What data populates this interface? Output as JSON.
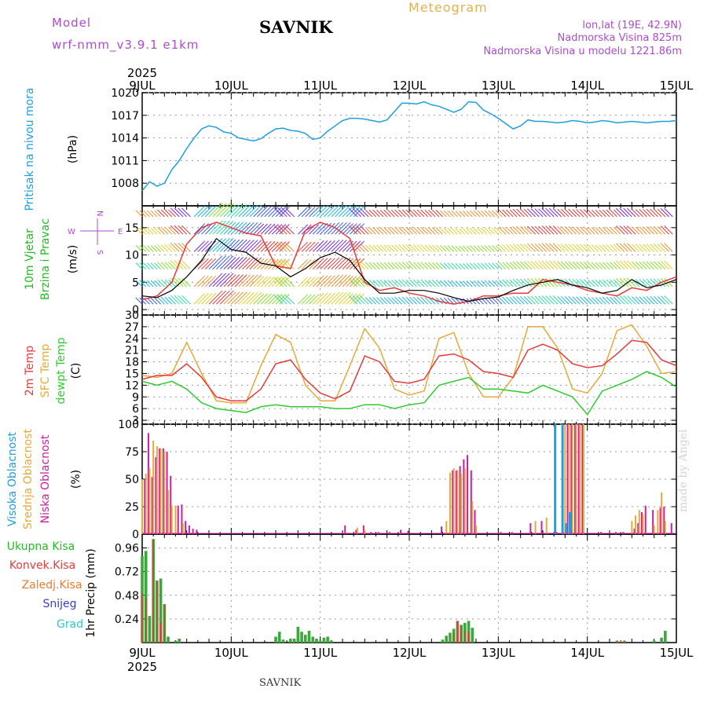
{
  "header": {
    "model_label": "Model",
    "model_name": "wrf-nmm_v3.9.1 e1km",
    "station": "SAVNIK",
    "meteogram": "Meteogram",
    "lonlat": "lon,lat (19E, 42.9N)",
    "altitude": "Nadmorska Visina 825m",
    "model_altitude": "Nadmorska Visina u modelu 1221.86m"
  },
  "footer": {
    "station": "SAVNIK",
    "credit": "made by Angel"
  },
  "axis": {
    "year": "2025",
    "days": [
      "9JUL",
      "10JUL",
      "11JUL",
      "12JUL",
      "13JUL",
      "14JUL",
      "15JUL"
    ]
  },
  "colors": {
    "pressure": "#1e9fe0",
    "temp": "#e83a3a",
    "sfc": "#e8a83a",
    "dew": "#2ecc2e",
    "high_cloud": "#1e9fe0",
    "mid_cloud": "#e8a83a",
    "low_cloud": "#cc1e9f",
    "precip": "#3aa83a",
    "convective": "#e83a3a",
    "wind_black": "#000000",
    "gust_red": "#e83a3a"
  },
  "panels": {
    "pressure": {
      "label1": "Pritisak na nivou mora",
      "unit": "(hPa)"
    },
    "wind": {
      "label1": "10m Vjetar",
      "label2": "Brzina i Pravac",
      "unit": "(m/s)",
      "compass": {
        "n": "N",
        "s": "S",
        "e": "E",
        "w": "W"
      }
    },
    "temp": {
      "label1": "2m Temp",
      "label2": "SFC Temp",
      "label3": "dewpt Temp",
      "unit": "(C)"
    },
    "cloud": {
      "label1": "Visoka Oblacnost",
      "label2": "Srednja Oblacnost",
      "label3": "Niska Oblacnost",
      "unit": "(%)"
    },
    "precip": {
      "labels": [
        "Ukupna Kisa",
        "Konvek.Kisa",
        "Zaledj.Kisa",
        "Snijeg",
        "Grad"
      ],
      "unit": "1hr Precip (mm)"
    }
  },
  "chart_data": [
    {
      "type": "line",
      "title": "Pritisak na nivou mora",
      "ylabel": "(hPa)",
      "ylim": [
        1005,
        1020
      ],
      "yticks": [
        1008,
        1011,
        1014,
        1017,
        1020
      ],
      "x_hours": [
        0,
        2,
        4,
        6,
        8,
        10,
        12,
        14,
        16,
        18,
        20,
        22,
        24,
        26,
        28,
        30,
        32,
        34,
        36,
        38,
        40,
        42,
        44,
        46,
        48,
        50,
        52,
        54,
        56,
        58,
        60,
        62,
        64,
        66,
        68,
        70,
        72,
        74,
        76,
        78,
        80,
        82,
        84,
        86,
        88,
        90,
        92,
        94,
        96,
        98,
        100,
        102,
        104,
        106,
        108,
        110,
        112,
        114,
        116,
        118,
        120,
        122,
        124,
        126,
        128,
        130,
        132,
        134,
        136,
        138,
        140,
        142,
        144
      ],
      "series": [
        {
          "name": "Pritisak",
          "values": [
            1007.0,
            1008.2,
            1007.6,
            1008.0,
            1009.8,
            1011.0,
            1012.6,
            1014.0,
            1015.2,
            1015.6,
            1015.4,
            1014.8,
            1014.6,
            1014.0,
            1013.8,
            1013.6,
            1013.9,
            1014.6,
            1015.2,
            1015.3,
            1015.0,
            1014.9,
            1014.6,
            1013.8,
            1014.0,
            1014.9,
            1015.6,
            1016.3,
            1016.6,
            1016.6,
            1016.5,
            1016.3,
            1016.1,
            1016.4,
            1017.5,
            1018.6,
            1018.6,
            1018.5,
            1018.8,
            1018.4,
            1018.2,
            1017.8,
            1017.4,
            1017.8,
            1018.8,
            1018.7,
            1017.7,
            1017.2,
            1016.6,
            1015.9,
            1015.2,
            1015.6,
            1016.4,
            1016.2,
            1016.2,
            1016.1,
            1016.0,
            1016.1,
            1016.3,
            1016.2,
            1016.0,
            1016.1,
            1016.3,
            1016.2,
            1016.0,
            1016.1,
            1016.2,
            1016.1,
            1016.0,
            1016.1,
            1016.2,
            1016.2,
            1016.3
          ]
        }
      ]
    },
    {
      "type": "line",
      "title": "10m Vjetar Brzina i Pravac",
      "ylabel": "(m/s)",
      "ylim": [
        -1,
        19
      ],
      "yticks": [
        0,
        5,
        10,
        15
      ],
      "x_hours": [
        0,
        4,
        8,
        12,
        16,
        20,
        24,
        28,
        32,
        36,
        40,
        44,
        48,
        52,
        56,
        60,
        64,
        68,
        72,
        76,
        80,
        84,
        88,
        92,
        96,
        100,
        104,
        108,
        112,
        116,
        120,
        124,
        128,
        132,
        136,
        140,
        144
      ],
      "series": [
        {
          "name": "Brzina",
          "values": [
            2.5,
            2.2,
            3.5,
            6.0,
            9.0,
            13.0,
            11.0,
            10.5,
            8.5,
            8.0,
            6.0,
            7.5,
            9.5,
            10.5,
            9.0,
            5.5,
            3.0,
            3.0,
            3.5,
            3.5,
            3.0,
            2.2,
            1.5,
            2.0,
            2.3,
            3.5,
            4.5,
            5.0,
            5.5,
            4.5,
            4.0,
            3.0,
            3.5,
            5.5,
            4.0,
            4.5,
            5.5
          ]
        },
        {
          "name": "Udar",
          "values": [
            1.8,
            2.5,
            5.0,
            12.0,
            15.0,
            16.0,
            15.0,
            14.0,
            13.5,
            8.0,
            7.5,
            14.5,
            16.0,
            15.0,
            13.0,
            5.0,
            3.5,
            4.0,
            3.0,
            2.5,
            1.5,
            1.0,
            1.5,
            2.5,
            2.5,
            3.0,
            3.0,
            5.5,
            5.0,
            4.5,
            3.5,
            3.0,
            2.5,
            4.0,
            3.5,
            5.0,
            6.0
          ]
        }
      ]
    },
    {
      "type": "line",
      "title": "2m Temp / SFC Temp / dewpt Temp",
      "ylabel": "(C)",
      "ylim": [
        2,
        30
      ],
      "yticks": [
        3,
        6,
        9,
        12,
        15,
        18,
        21,
        24,
        27,
        30
      ],
      "x_hours": [
        0,
        4,
        8,
        12,
        16,
        20,
        24,
        28,
        32,
        36,
        40,
        44,
        48,
        52,
        56,
        60,
        64,
        68,
        72,
        76,
        80,
        84,
        88,
        92,
        96,
        100,
        104,
        108,
        112,
        116,
        120,
        124,
        128,
        132,
        136,
        140,
        144
      ],
      "series": [
        {
          "name": "2m Temp",
          "values": [
            13.5,
            14.5,
            14.5,
            17.5,
            14.0,
            9.0,
            8.0,
            8.0,
            11.0,
            17.5,
            18.5,
            13.5,
            10.0,
            8.5,
            10.5,
            19.5,
            18.0,
            13.0,
            12.5,
            13.5,
            19.5,
            20.0,
            18.5,
            15.5,
            15.0,
            14.0,
            21.0,
            22.5,
            21.0,
            17.5,
            16.5,
            17.0,
            20.0,
            23.5,
            23.0,
            18.5,
            17.0
          ]
        },
        {
          "name": "SFC Temp",
          "values": [
            14.5,
            14.0,
            15.0,
            23.0,
            15.0,
            8.0,
            7.5,
            7.5,
            17.0,
            25.0,
            23.0,
            12.0,
            8.0,
            8.0,
            17.0,
            26.5,
            21.5,
            11.0,
            9.5,
            10.5,
            24.0,
            25.5,
            15.0,
            9.0,
            9.0,
            14.0,
            27.0,
            27.0,
            21.5,
            11.0,
            10.0,
            15.0,
            26.0,
            27.5,
            22.0,
            15.0,
            15.5
          ]
        },
        {
          "name": "dewpt Temp",
          "values": [
            13.0,
            12.0,
            13.0,
            11.0,
            7.5,
            6.0,
            5.5,
            5.0,
            6.5,
            7.0,
            6.5,
            6.5,
            6.5,
            6.0,
            6.0,
            7.0,
            7.0,
            6.0,
            7.0,
            7.5,
            12.0,
            13.0,
            14.0,
            11.0,
            11.0,
            10.5,
            10.0,
            12.0,
            10.5,
            9.0,
            4.5,
            10.5,
            12.0,
            13.5,
            15.5,
            14.0,
            11.5
          ]
        }
      ]
    },
    {
      "type": "bar",
      "title": "Visoka / Srednja / Niska Oblacnost",
      "ylabel": "(%)",
      "ylim": [
        0,
        100
      ],
      "yticks": [
        0,
        25,
        50,
        75,
        100
      ],
      "series": [
        {
          "name": "Niska Oblacnost",
          "points": [
            [
              1,
              50
            ],
            [
              2,
              92
            ],
            [
              3,
              52
            ],
            [
              4,
              70
            ],
            [
              5,
              78
            ],
            [
              6,
              78
            ],
            [
              7,
              75
            ],
            [
              8,
              53
            ],
            [
              10,
              26
            ],
            [
              11,
              27
            ],
            [
              12,
              12
            ],
            [
              13,
              8
            ],
            [
              14,
              5
            ],
            [
              15,
              4
            ],
            [
              55,
              8
            ],
            [
              58,
              4
            ],
            [
              60,
              8
            ],
            [
              62,
              2
            ],
            [
              64,
              2
            ],
            [
              67,
              2
            ],
            [
              70,
              4
            ],
            [
              72,
              3
            ],
            [
              81,
              7
            ],
            [
              84,
              58
            ],
            [
              85,
              58
            ],
            [
              86,
              62
            ],
            [
              87,
              68
            ],
            [
              88,
              72
            ],
            [
              89,
              58
            ],
            [
              90,
              22
            ],
            [
              97,
              2
            ],
            [
              100,
              2
            ],
            [
              105,
              10
            ],
            [
              108,
              12
            ],
            [
              112,
              2
            ],
            [
              115,
              100
            ],
            [
              116,
              100
            ],
            [
              117,
              100
            ],
            [
              118,
              100
            ],
            [
              119,
              100
            ],
            [
              124,
              2
            ],
            [
              128,
              2
            ],
            [
              130,
              2
            ],
            [
              133,
              5
            ],
            [
              134,
              10
            ],
            [
              135,
              20
            ],
            [
              136,
              26
            ],
            [
              138,
              22
            ],
            [
              140,
              24
            ],
            [
              141,
              25
            ],
            [
              143,
              10
            ]
          ]
        },
        {
          "name": "Srednja Oblacnost",
          "points": [
            [
              0,
              50
            ],
            [
              1,
              55
            ],
            [
              2,
              60
            ],
            [
              3,
              85
            ],
            [
              4,
              80
            ],
            [
              5,
              78
            ],
            [
              6,
              75
            ],
            [
              7,
              40
            ],
            [
              8,
              26
            ],
            [
              9,
              26
            ],
            [
              11,
              10
            ],
            [
              58,
              6
            ],
            [
              60,
              4
            ],
            [
              82,
              12
            ],
            [
              83,
              56
            ],
            [
              84,
              60
            ],
            [
              85,
              58
            ],
            [
              86,
              55
            ],
            [
              87,
              60
            ],
            [
              89,
              30
            ],
            [
              90,
              8
            ],
            [
              106,
              12
            ],
            [
              109,
              15
            ],
            [
              114,
              100
            ],
            [
              115,
              100
            ],
            [
              116,
              100
            ],
            [
              117,
              100
            ],
            [
              118,
              100
            ],
            [
              119,
              100
            ],
            [
              132,
              12
            ],
            [
              133,
              17
            ],
            [
              134,
              22
            ],
            [
              135,
              18
            ],
            [
              138,
              8
            ],
            [
              139,
              22
            ],
            [
              140,
              38
            ],
            [
              141,
              12
            ]
          ]
        },
        {
          "name": "Visoka Oblacnost",
          "points": [
            [
              111,
              100
            ],
            [
              113,
              100
            ],
            [
              114,
              10
            ],
            [
              115,
              20
            ]
          ]
        }
      ]
    },
    {
      "type": "bar",
      "title": "Ukupna Kisa / Konvek.Kisa",
      "ylabel": "1hr Precip (mm)",
      "ylim": [
        0,
        1.1
      ],
      "yticks": [
        0.24,
        0.48,
        0.72,
        0.96
      ],
      "series": [
        {
          "name": "Ukupna Kisa",
          "points": [
            [
              0,
              0.88
            ],
            [
              1,
              0.93
            ],
            [
              2,
              0.27
            ],
            [
              3,
              1.05
            ],
            [
              4,
              0.63
            ],
            [
              5,
              0.65
            ],
            [
              6,
              0.39
            ],
            [
              7,
              0.06
            ],
            [
              9,
              0.02
            ],
            [
              10,
              0.04
            ],
            [
              36,
              0.06
            ],
            [
              37,
              0.11
            ],
            [
              38,
              0.03
            ],
            [
              40,
              0.04
            ],
            [
              41,
              0.04
            ],
            [
              42,
              0.16
            ],
            [
              43,
              0.11
            ],
            [
              44,
              0.08
            ],
            [
              45,
              0.12
            ],
            [
              46,
              0.06
            ],
            [
              47,
              0.04
            ],
            [
              48,
              0.02
            ],
            [
              49,
              0.05
            ],
            [
              50,
              0.06
            ],
            [
              51,
              0.02
            ],
            [
              81,
              0.03
            ],
            [
              82,
              0.07
            ],
            [
              83,
              0.1
            ],
            [
              84,
              0.14
            ],
            [
              85,
              0.22
            ],
            [
              86,
              0.18
            ],
            [
              87,
              0.2
            ],
            [
              88,
              0.22
            ],
            [
              89,
              0.15
            ],
            [
              128,
              0.02
            ],
            [
              130,
              0.02
            ],
            [
              138,
              0.02
            ],
            [
              140,
              0.05
            ],
            [
              141,
              0.12
            ]
          ]
        },
        {
          "name": "Konvek.Kisa",
          "points": [
            [
              0,
              0.5
            ],
            [
              1,
              0.45
            ],
            [
              3,
              1.05
            ],
            [
              4,
              0.62
            ],
            [
              5,
              0.2
            ],
            [
              6,
              0.39
            ],
            [
              84,
              0.1
            ],
            [
              85,
              0.22
            ],
            [
              86,
              0.17
            ],
            [
              87,
              0.12
            ],
            [
              88,
              0.1
            ],
            [
              128,
              0.02
            ],
            [
              129,
              0.02
            ],
            [
              130,
              0.01
            ]
          ]
        }
      ]
    }
  ]
}
